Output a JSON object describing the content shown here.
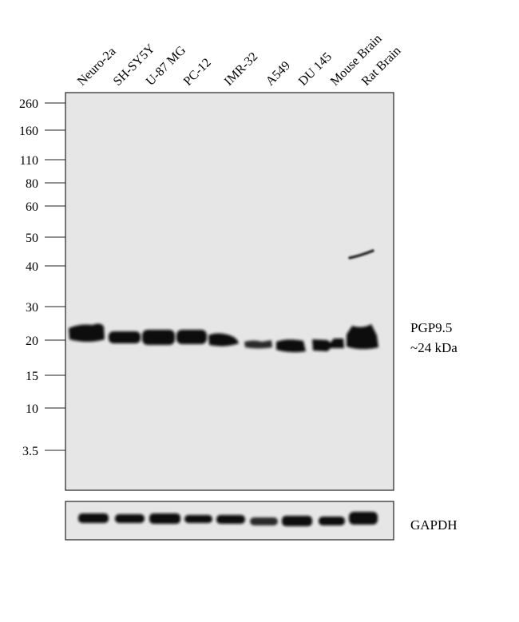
{
  "lanes": [
    "Neuro-2a",
    "SH-SY5Y",
    "U-87 MG",
    "PC-12",
    "IMR-32",
    "A549",
    "DU 145",
    "Mouse Brain",
    "Rat Brain"
  ],
  "mw_markers": [
    "260",
    "160",
    "110",
    "80",
    "60",
    "50",
    "40",
    "30",
    "20",
    "15",
    "10",
    "3.5"
  ],
  "target": {
    "name": "PGP9.5",
    "size": "~24 kDa"
  },
  "loading_control": {
    "name": "GAPDH"
  },
  "colors": {
    "membrane": "#e6e6e6",
    "band": "#111111",
    "border": "#222222"
  }
}
